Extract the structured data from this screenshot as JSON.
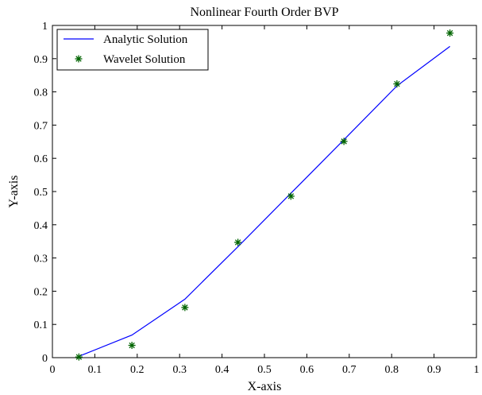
{
  "chart_data": {
    "type": "line",
    "title": "Nonlinear Fourth Order BVP",
    "xlabel": "X-axis",
    "ylabel": "Y-axis",
    "xlim": [
      0,
      1
    ],
    "ylim": [
      0,
      1
    ],
    "x_ticks": [
      0,
      0.1,
      0.2,
      0.3,
      0.4,
      0.5,
      0.6,
      0.7,
      0.8,
      0.9,
      1
    ],
    "x_tick_labels": [
      "0",
      "0.1",
      "0.2",
      "0.3",
      "0.4",
      "0.5",
      "0.6",
      "0.7",
      "0.8",
      "0.9",
      "1"
    ],
    "y_ticks": [
      0,
      0.1,
      0.2,
      0.3,
      0.4,
      0.5,
      0.6,
      0.7,
      0.8,
      0.9,
      1
    ],
    "y_tick_labels": [
      "0",
      "0.1",
      "0.2",
      "0.3",
      "0.4",
      "0.5",
      "0.6",
      "0.7",
      "0.8",
      "0.9",
      "1"
    ],
    "grid": false,
    "legend_position": "top-left",
    "series": [
      {
        "name": "Analytic Solution",
        "style": "line",
        "color": "#0000ff",
        "x": [
          0.0625,
          0.1875,
          0.3125,
          0.4375,
          0.5625,
          0.6875,
          0.8125,
          0.9375
        ],
        "y": [
          0.004,
          0.068,
          0.176,
          0.334,
          0.495,
          0.656,
          0.818,
          0.937
        ]
      },
      {
        "name": "Wavelet Solution",
        "style": "marker",
        "marker": "star",
        "color": "#006400",
        "x": [
          0.0625,
          0.1875,
          0.3125,
          0.4375,
          0.5625,
          0.6875,
          0.8125,
          0.9375
        ],
        "y": [
          0.002,
          0.037,
          0.151,
          0.347,
          0.486,
          0.651,
          0.824,
          0.977
        ]
      }
    ]
  }
}
